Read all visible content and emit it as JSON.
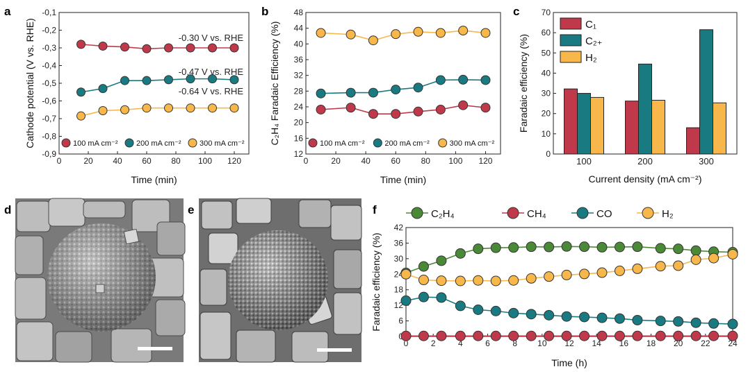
{
  "colors": {
    "red": "#c0394b",
    "teal": "#1a7a82",
    "orange": "#f8b74b",
    "green": "#4a8a36"
  },
  "panels": {
    "a": {
      "letter": "a"
    },
    "b": {
      "letter": "b"
    },
    "c": {
      "letter": "c"
    },
    "d": {
      "letter": "d"
    },
    "e": {
      "letter": "e"
    },
    "f": {
      "letter": "f"
    }
  },
  "chart_data": [
    {
      "id": "a",
      "type": "line",
      "xlabel": "Time (min)",
      "ylabel": "Cathode potential (V vs. RHE)",
      "xlim": [
        0,
        130
      ],
      "ylim": [
        -0.9,
        -0.1
      ],
      "xticks": [
        "0",
        "20",
        "40",
        "60",
        "80",
        "100",
        "120"
      ],
      "yticks": [
        "-0,1",
        "-0,2",
        "-0,3",
        "-0,4",
        "-0,5",
        "-0,6",
        "-0,7",
        "-0,8",
        "-0,9"
      ],
      "x": [
        15,
        30,
        45,
        60,
        75,
        90,
        105,
        120
      ],
      "series": [
        {
          "name": "100 mA cm⁻²",
          "color": "#c0394b",
          "values": [
            -0.28,
            -0.29,
            -0.295,
            -0.305,
            -0.3,
            -0.3,
            -0.3,
            -0.3
          ]
        },
        {
          "name": "200 mA cm⁻²",
          "color": "#1a7a82",
          "values": [
            -0.55,
            -0.53,
            -0.485,
            -0.485,
            -0.48,
            -0.475,
            -0.475,
            -0.48
          ]
        },
        {
          "name": "300 mA cm⁻²",
          "color": "#f8b74b",
          "values": [
            -0.685,
            -0.655,
            -0.65,
            -0.64,
            -0.64,
            -0.64,
            -0.64,
            -0.64
          ]
        }
      ],
      "annotations": [
        {
          "text": "-0.30 V vs. RHE",
          "color": "#c0394b"
        },
        {
          "text": "-0.47 V vs. RHE",
          "color": "#1a7a82"
        },
        {
          "text": "-0.64 V vs. RHE",
          "color": "#f8b74b"
        }
      ],
      "legend": "bottom"
    },
    {
      "id": "b",
      "type": "line",
      "xlabel": "Time (min)",
      "ylabel": "C₂H₄ Faradaic Efficiency (%)",
      "xlim": [
        0,
        130
      ],
      "ylim": [
        12,
        48
      ],
      "xticks": [
        "0",
        "20",
        "40",
        "60",
        "80",
        "100",
        "120"
      ],
      "yticks": [
        "12",
        "16",
        "20",
        "24",
        "28",
        "32",
        "36",
        "40",
        "44",
        "48"
      ],
      "x": [
        10,
        30,
        45,
        60,
        75,
        90,
        105,
        120
      ],
      "series": [
        {
          "name": "100 mA cm⁻²",
          "color": "#c0394b",
          "values": [
            23.3,
            23.8,
            22.2,
            22.2,
            22.8,
            23.3,
            24.4,
            23.8
          ]
        },
        {
          "name": "200 mA cm⁻²",
          "color": "#1a7a82",
          "values": [
            27.4,
            27.6,
            27.6,
            28.4,
            28.9,
            30.8,
            30.9,
            30.8
          ]
        },
        {
          "name": "300 mA cm⁻²",
          "color": "#f8b74b",
          "values": [
            42.8,
            42.4,
            40.9,
            42.5,
            43.1,
            42.8,
            43.4,
            42.8
          ]
        }
      ],
      "legend": "bottom"
    },
    {
      "id": "c",
      "type": "bar",
      "xlabel": "Current density (mA cm⁻²)",
      "ylabel": "Faradaic efficiency (%)",
      "ylim": [
        0,
        70
      ],
      "categories": [
        "100",
        "200",
        "300"
      ],
      "yticks": [
        "0",
        "10",
        "20",
        "30",
        "40",
        "50",
        "60",
        "70"
      ],
      "series": [
        {
          "name": "C₁",
          "color": "#c0394b",
          "values": [
            32.2,
            26.2,
            13.0
          ]
        },
        {
          "name": "C₂₊",
          "color": "#1a7a82",
          "values": [
            30.0,
            44.5,
            61.5
          ]
        },
        {
          "name": "H₂",
          "color": "#f8b74b",
          "values": [
            28.0,
            26.6,
            25.3
          ]
        }
      ],
      "legend": "top-left"
    },
    {
      "id": "f",
      "type": "line",
      "xlabel": "Time (h)",
      "ylabel": "Faradaic efficiency (%)",
      "xlim": [
        0,
        24
      ],
      "ylim": [
        0,
        42
      ],
      "xticks": [
        "0",
        "2",
        "4",
        "6",
        "8",
        "10",
        "12",
        "14",
        "16",
        "18",
        "20",
        "22",
        "24"
      ],
      "yticks": [
        "0",
        "6",
        "12",
        "18",
        "24",
        "30",
        "36",
        "42"
      ],
      "x": [
        0,
        1.3,
        2.6,
        4.0,
        5.3,
        6.6,
        7.9,
        9.2,
        10.5,
        11.8,
        13.1,
        14.4,
        15.7,
        17.0,
        18.7,
        20.0,
        21.3,
        22.6,
        24.0
      ],
      "series": [
        {
          "name": "C₂H₄",
          "color": "#4a8a36",
          "values": [
            24.5,
            27.0,
            29.2,
            32.0,
            33.8,
            34.2,
            34.3,
            34.6,
            34.5,
            34.7,
            34.6,
            34.4,
            34.5,
            34.6,
            34.0,
            33.8,
            33.1,
            32.7,
            32.5
          ]
        },
        {
          "name": "CH₄",
          "color": "#c0394b",
          "values": [
            0.2,
            0.2,
            0.2,
            0.2,
            0.2,
            0.2,
            0.2,
            0.2,
            0.2,
            0.2,
            0.2,
            0.2,
            0.2,
            0.2,
            0.2,
            0.2,
            0.2,
            0.2,
            0.2
          ]
        },
        {
          "name": "CO",
          "color": "#1a7a82",
          "values": [
            13.8,
            15.2,
            15.0,
            11.8,
            10.3,
            9.8,
            9.0,
            8.6,
            8.2,
            7.7,
            7.5,
            7.2,
            6.9,
            6.3,
            6.0,
            5.8,
            5.3,
            5.0,
            4.8
          ]
        },
        {
          "name": "H₂",
          "color": "#f8b74b",
          "values": [
            24.0,
            21.8,
            21.5,
            21.4,
            21.6,
            21.4,
            21.6,
            22.4,
            23.1,
            23.7,
            24.1,
            24.6,
            25.3,
            26.1,
            27.1,
            27.3,
            29.6,
            30.2,
            31.7
          ]
        }
      ],
      "legend": "top"
    }
  ]
}
